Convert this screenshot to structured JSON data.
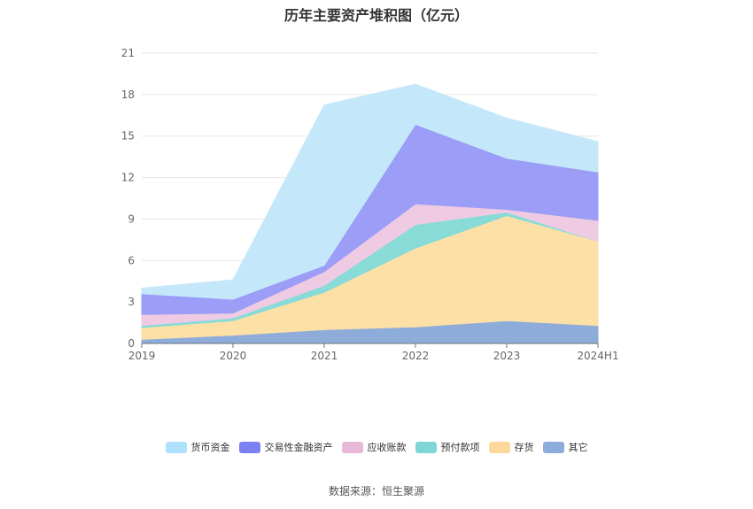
{
  "chart_data": {
    "type": "area",
    "stacked": true,
    "title": "历年主要资产堆积图（亿元）",
    "categories": [
      "2019",
      "2020",
      "2021",
      "2022",
      "2023",
      "2024H1"
    ],
    "ylim": [
      0,
      21
    ],
    "yticks": [
      0,
      3,
      6,
      9,
      12,
      15,
      18,
      21
    ],
    "grid": true,
    "legend_position": "bottom",
    "series": [
      {
        "name": "其它",
        "color": "#8eacd9",
        "values": [
          0.3,
          0.6,
          1.0,
          1.2,
          1.65,
          1.3
        ]
      },
      {
        "name": "存货",
        "color": "#fde0a6",
        "values": [
          0.85,
          1.05,
          2.7,
          5.7,
          7.6,
          6.1
        ]
      },
      {
        "name": "预付款项",
        "color": "#89dbd8",
        "values": [
          0.15,
          0.2,
          0.5,
          1.7,
          0.25,
          0.0
        ]
      },
      {
        "name": "应收账款",
        "color": "#eecbe3",
        "values": [
          0.8,
          0.35,
          1.0,
          1.5,
          0.2,
          1.5
        ]
      },
      {
        "name": "交易性金融资产",
        "color": "#9b9df6",
        "values": [
          1.5,
          1.0,
          0.45,
          5.75,
          3.7,
          3.5
        ]
      },
      {
        "name": "货币资金",
        "color": "#c4e8fa",
        "values": [
          0.4,
          1.4,
          11.6,
          2.9,
          2.9,
          2.2
        ]
      }
    ]
  },
  "legend_colors": {
    "货币资金": "#aee1fb",
    "交易性金融资产": "#7d80f0",
    "应收账款": "#e8b8d9",
    "预付款项": "#80d6d4",
    "存货": "#fdd89a",
    "其它": "#8eacd9"
  },
  "legend_order": [
    "货币资金",
    "交易性金融资产",
    "应收账款",
    "预付款项",
    "存货",
    "其它"
  ],
  "source": "数据来源：恒生聚源"
}
